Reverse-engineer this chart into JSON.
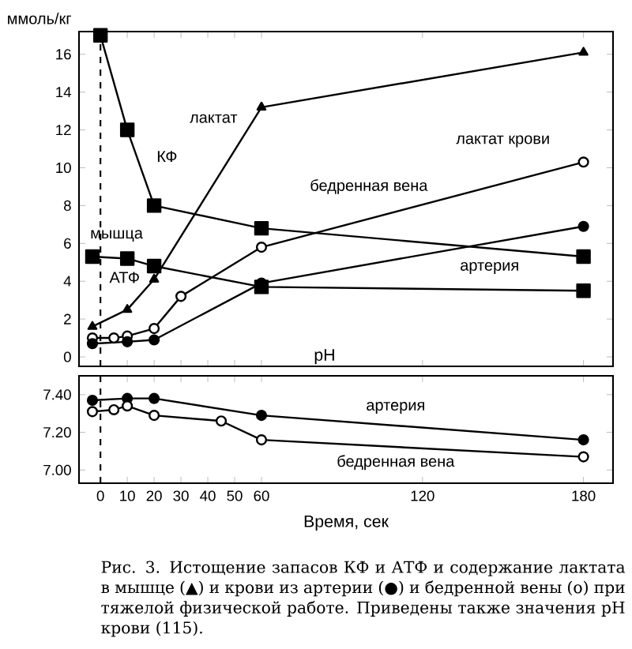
{
  "chart_data": [
    {
      "type": "line",
      "ylabel": "ммоль/кг",
      "xlim": [
        -8,
        191
      ],
      "ylim": [
        -0.5,
        17.2
      ],
      "xticks": [
        0,
        10,
        20,
        30,
        40,
        50,
        60,
        120,
        180
      ],
      "yticks": [
        0,
        2,
        4,
        6,
        8,
        10,
        12,
        14,
        16
      ],
      "tick_labels": "y",
      "ref_lines": [
        {
          "axis": "x",
          "value": 0,
          "line_style": "dashed"
        }
      ],
      "annotations": [
        "мышца",
        "лактат крови"
      ],
      "series": [
        {
          "name": "КФ",
          "color": "#000000",
          "marker": "square",
          "x": [
            0,
            10,
            20,
            60,
            180
          ],
          "values": [
            17.0,
            12.0,
            8.0,
            6.8,
            5.3
          ]
        },
        {
          "name": "АТФ",
          "color": "#000000",
          "marker": "square",
          "x": [
            -3,
            10,
            20,
            60,
            180
          ],
          "values": [
            5.3,
            5.2,
            4.8,
            3.7,
            3.5
          ]
        },
        {
          "name": "лактат",
          "color": "#000000",
          "marker": "triangle",
          "x": [
            -3,
            10,
            20,
            60,
            180
          ],
          "values": [
            1.6,
            2.5,
            4.1,
            13.2,
            16.1
          ]
        },
        {
          "name": "бедренная вена",
          "color": "#ffffff",
          "marker": "circle",
          "x": [
            -3,
            5,
            10,
            20,
            30,
            60,
            180
          ],
          "values": [
            1.0,
            1.0,
            1.1,
            1.5,
            3.2,
            5.8,
            10.3
          ]
        },
        {
          "name": "артерия",
          "color": "#000000",
          "marker": "circle",
          "x": [
            -3,
            10,
            20,
            60,
            180
          ],
          "values": [
            0.7,
            0.8,
            0.9,
            3.9,
            6.9
          ]
        }
      ]
    },
    {
      "type": "line",
      "title": "pH",
      "xlabel": "Время, сек",
      "xlim": [
        -8,
        191
      ],
      "ylim": [
        6.93,
        7.5
      ],
      "xticks": [
        0,
        10,
        20,
        30,
        40,
        50,
        60,
        120,
        180
      ],
      "yticks": [
        {
          "value": 7.0,
          "label": "7.00"
        },
        {
          "value": 7.2,
          "label": "7.20"
        },
        {
          "value": 7.4,
          "label": "7.40"
        }
      ],
      "ref_lines": [
        {
          "axis": "x",
          "value": 0,
          "line_style": "dashed"
        }
      ],
      "annotations": [
        "Рис. 3. Истощение запасов КФ и АТФ и содержание лактата в мышце (▲) и крови из артерии (●) и бедренной вены (o) при тяжелой физической работе. Приведены также значения pH крови (115)."
      ],
      "series": [
        {
          "name": "артерия",
          "color": "#000000",
          "marker": "circle",
          "x": [
            -3,
            10,
            20,
            60,
            180
          ],
          "values": [
            7.37,
            7.38,
            7.38,
            7.29,
            7.16
          ]
        },
        {
          "name": "бедренная вена",
          "color": "#ffffff",
          "marker": "circle",
          "x": [
            -3,
            5,
            10,
            20,
            45,
            60,
            180
          ],
          "values": [
            7.31,
            7.32,
            7.34,
            7.29,
            7.26,
            7.16,
            7.07
          ]
        }
      ]
    }
  ]
}
